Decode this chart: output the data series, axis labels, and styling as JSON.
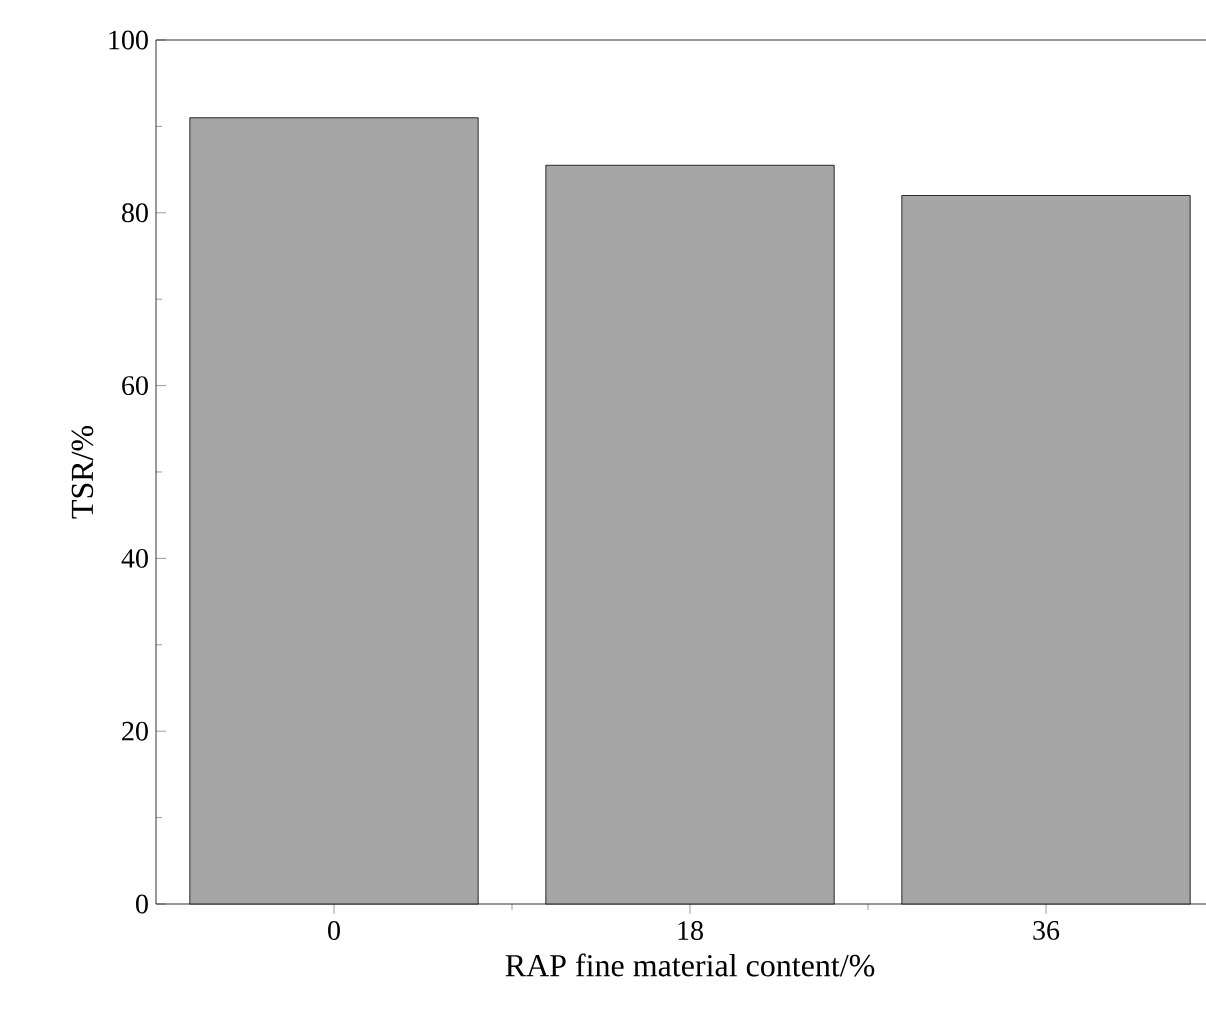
{
  "chart_data": {
    "type": "bar",
    "xlabel": "RAP fine material content/%",
    "ylabel": "TSR/%",
    "categories": [
      "0",
      "18",
      "36"
    ],
    "values": [
      91,
      85.5,
      82
    ],
    "color": "#a6a6a6",
    "ylim": [
      0,
      100
    ],
    "yticks": [
      0,
      20,
      40,
      60,
      80,
      100
    ]
  }
}
